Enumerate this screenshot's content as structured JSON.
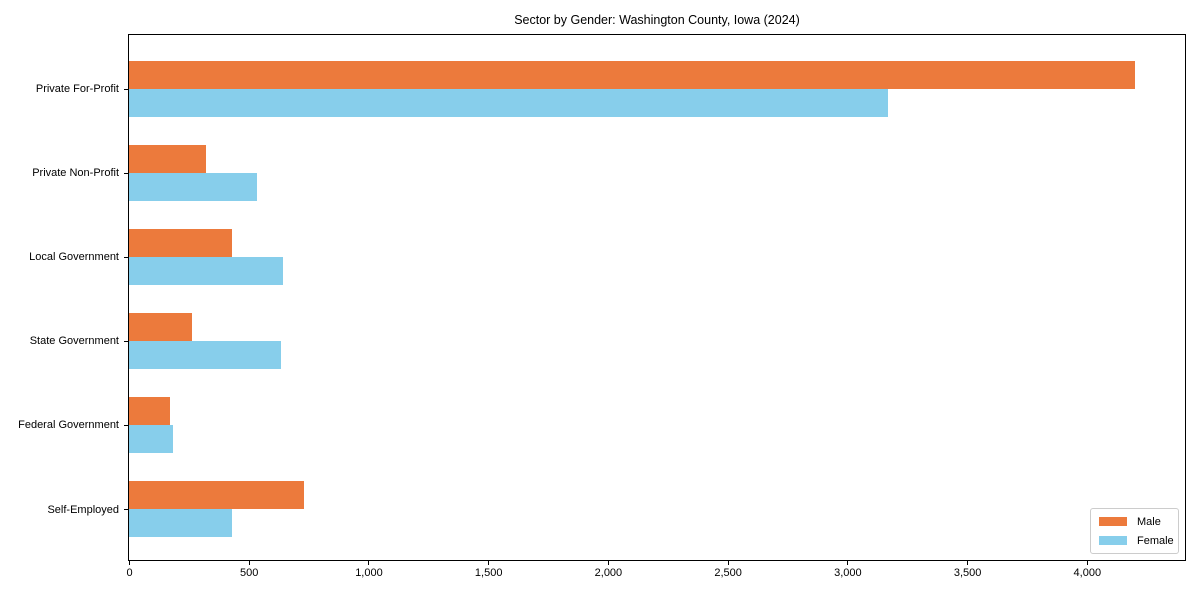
{
  "chart_data": {
    "type": "bar",
    "orientation": "horizontal",
    "title": "Sector by Gender: Washington County, Iowa (2024)",
    "categories": [
      "Private For-Profit",
      "Private Non-Profit",
      "Local Government",
      "State Government",
      "Federal Government",
      "Self-Employed"
    ],
    "series": [
      {
        "name": "Male",
        "color": "#EC7A3C",
        "values": [
          4200,
          320,
          430,
          265,
          170,
          730
        ]
      },
      {
        "name": "Female",
        "color": "#87CEEB",
        "values": [
          3170,
          535,
          645,
          635,
          185,
          430
        ]
      }
    ],
    "xlabel": "",
    "ylabel": "",
    "xlim": [
      0,
      4410
    ],
    "x_ticks": [
      0,
      500,
      1000,
      1500,
      2000,
      2500,
      3000,
      3500,
      4000
    ],
    "x_tick_labels": [
      "0",
      "500",
      "1,000",
      "1,500",
      "2,000",
      "2,500",
      "3,000",
      "3,500",
      "4,000"
    ],
    "grid": false,
    "legend_position": "lower right"
  }
}
